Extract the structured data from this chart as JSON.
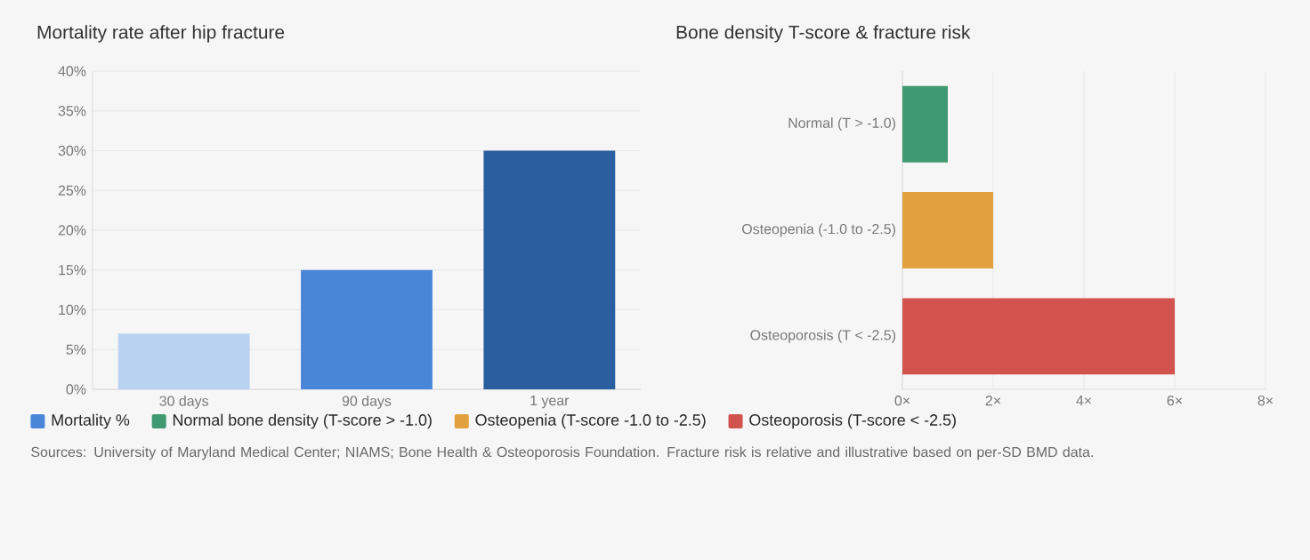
{
  "chart_data": [
    {
      "type": "bar",
      "title": "Mortality rate after hip fracture",
      "categories": [
        "30 days",
        "90 days",
        "1 year"
      ],
      "series": [
        {
          "name": "Mortality %",
          "color": "#4a86d8",
          "values": [
            7,
            15,
            30
          ],
          "colors": [
            "#b8d2f0",
            "#4a86d8",
            "#2a5e9e"
          ]
        }
      ],
      "ylim": [
        0,
        40
      ],
      "yticks": [
        {
          "value": 0,
          "label": "0%"
        },
        {
          "value": 5,
          "label": "5%"
        },
        {
          "value": 10,
          "label": "10%"
        },
        {
          "value": 15,
          "label": "15%"
        },
        {
          "value": 20,
          "label": "20%"
        },
        {
          "value": 25,
          "label": "25%"
        },
        {
          "value": 30,
          "label": "30%"
        },
        {
          "value": 35,
          "label": "35%"
        },
        {
          "value": 40,
          "label": "40%"
        }
      ],
      "grid": "y",
      "legend": "bottom",
      "annotations": [
        "Sources: University of Maryland Medical Center; NIAMS; Bone Health & Osteoporosis Foundation. Fracture risk is relative and illustrative based on per-SD BMD data."
      ]
    },
    {
      "type": "bar",
      "orientation": "horizontal",
      "title": "Bone density T-score & fracture risk",
      "categories": [
        "Normal (T > -1.0)",
        "Osteopenia (-1.0 to -2.5)",
        "Osteoporosis (T < -2.5)"
      ],
      "series": [
        {
          "name": "Normal bone density (T-score > -1.0)",
          "color": "#3f9a72",
          "values": [
            1,
            null,
            null
          ]
        },
        {
          "name": "Osteopenia (T-score -1.0 to -2.5)",
          "color": "#e0a13e",
          "values": [
            null,
            2,
            null
          ]
        },
        {
          "name": "Osteoporosis (T-score < -2.5)",
          "color": "#d2524d",
          "values": [
            null,
            null,
            6
          ]
        }
      ],
      "xlim": [
        0,
        8
      ],
      "xticks": [
        {
          "value": 0,
          "label": "0×"
        },
        {
          "value": 2,
          "label": "2×"
        },
        {
          "value": 4,
          "label": "4×"
        },
        {
          "value": 6,
          "label": "6×"
        },
        {
          "value": 8,
          "label": "8×"
        }
      ],
      "grid": "x",
      "legend": "bottom"
    }
  ]
}
